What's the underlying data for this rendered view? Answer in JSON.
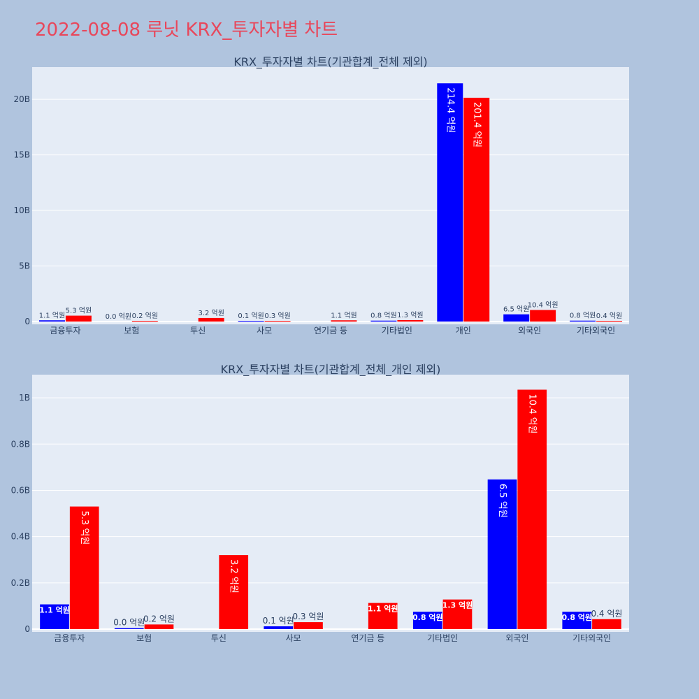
{
  "title": "2022-08-08 루닛 KRX_투자자별 차트",
  "colors": {
    "background": "#b0c4de",
    "plot_bg": "#e5ecf6",
    "title": "#e8475b",
    "buy": "#0000ff",
    "sell": "#ff0000"
  },
  "chart_data": [
    {
      "type": "bar",
      "title": "KRX_투자자별 차트(기관합계_전체 제외)",
      "categories": [
        "금융투자",
        "보험",
        "투신",
        "사모",
        "연기금 등",
        "기타법인",
        "개인",
        "외국인",
        "기타외국인"
      ],
      "yticks": [
        0,
        5,
        10,
        15,
        20
      ],
      "ytick_labels": [
        "0",
        "5B",
        "10B",
        "15B",
        "20B"
      ],
      "ylim": [
        0,
        22.9
      ],
      "series": [
        {
          "color": "#0000ff",
          "values": [
            0.11,
            0.0,
            0,
            0.01,
            0,
            0.08,
            21.44,
            0.65,
            0.08
          ],
          "labels": [
            "1.1 억원",
            "0.0 억원",
            "",
            "0.1 억원",
            "",
            "0.8 억원",
            "214.4 억원",
            "6.5 억원",
            "0.8 억원"
          ]
        },
        {
          "color": "#ff0000",
          "values": [
            0.53,
            0.02,
            0.32,
            0.03,
            0.11,
            0.13,
            20.14,
            1.04,
            0.04
          ],
          "labels": [
            "5.3 억원",
            "0.2 억원",
            "3.2 억원",
            "0.3 억원",
            "1.1 억원",
            "1.3 억원",
            "201.4 억원",
            "10.4 억원",
            "0.4 억원"
          ]
        }
      ]
    },
    {
      "type": "bar",
      "title": "KRX_투자자별 차트(기관합계_전체_개인 제외)",
      "categories": [
        "금융투자",
        "보험",
        "투신",
        "사모",
        "연기금 등",
        "기타법인",
        "외국인",
        "기타외국인"
      ],
      "yticks": [
        0,
        0.2,
        0.4,
        0.6,
        0.8,
        1.0
      ],
      "ytick_labels": [
        "0",
        "0.2B",
        "0.4B",
        "0.6B",
        "0.8B",
        "1B"
      ],
      "ylim": [
        0,
        1.1
      ],
      "series": [
        {
          "color": "#0000ff",
          "values": [
            0.107,
            0.004,
            0,
            0.012,
            0,
            0.075,
            0.647,
            0.075
          ],
          "labels": [
            "1.1 억원",
            "0.0 억원",
            "",
            "0.1 억원",
            "",
            "0.8 억원",
            "6.5 억원",
            "0.8 억원"
          ]
        },
        {
          "color": "#ff0000",
          "values": [
            0.53,
            0.02,
            0.32,
            0.03,
            0.113,
            0.128,
            1.035,
            0.043
          ],
          "labels": [
            "5.3 억원",
            "0.2 억원",
            "3.2 억원",
            "0.3 억원",
            "1.1 억원",
            "1.3 억원",
            "10.4 억원",
            "0.4 억원"
          ]
        }
      ]
    }
  ]
}
